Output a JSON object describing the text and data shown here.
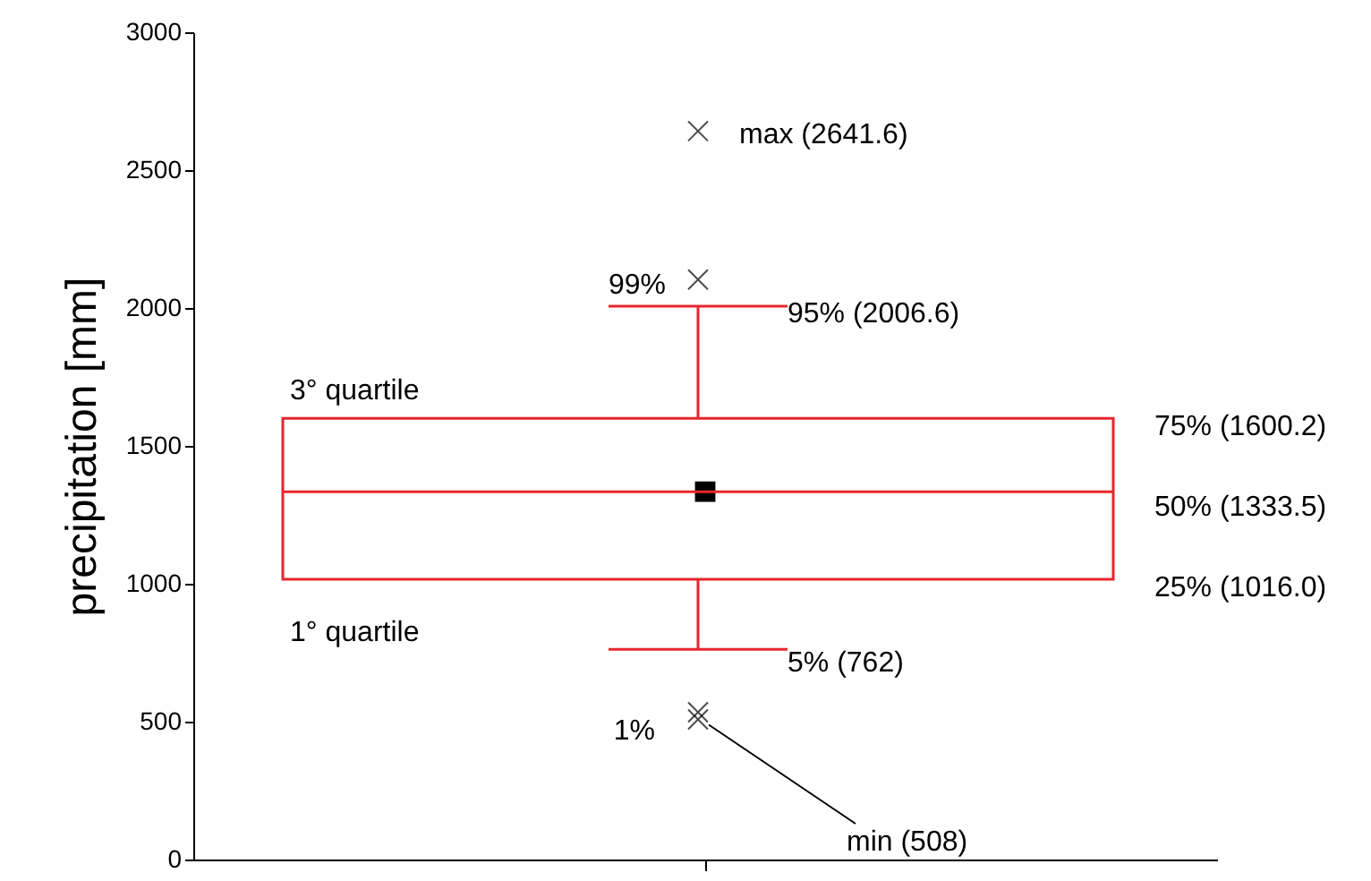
{
  "chart_data": {
    "type": "box",
    "ylabel": "precipitation [mm]",
    "categories": [
      null
    ],
    "boxes": [
      {
        "low": 762,
        "q1": 1016.0,
        "median": 1333.5,
        "q3": 1600.2,
        "high": 2006.6,
        "mean": 1334,
        "outliers": [
          2103,
          2641.6,
          534,
          508
        ]
      }
    ],
    "color": "#e8262c",
    "ylim": [
      0,
      3000
    ],
    "yticks": [
      0,
      500,
      1000,
      1500,
      2000,
      2500,
      3000
    ],
    "grid": false,
    "annotations": [
      "max (2641.6)",
      "99%",
      "95%   (2006.6)",
      "3° quartile",
      "75% (1600.2)",
      "50% (1333.5)",
      "25% (1016.0)",
      "1° quartile",
      "5%  (762)",
      "1%",
      "min  (508)"
    ]
  }
}
